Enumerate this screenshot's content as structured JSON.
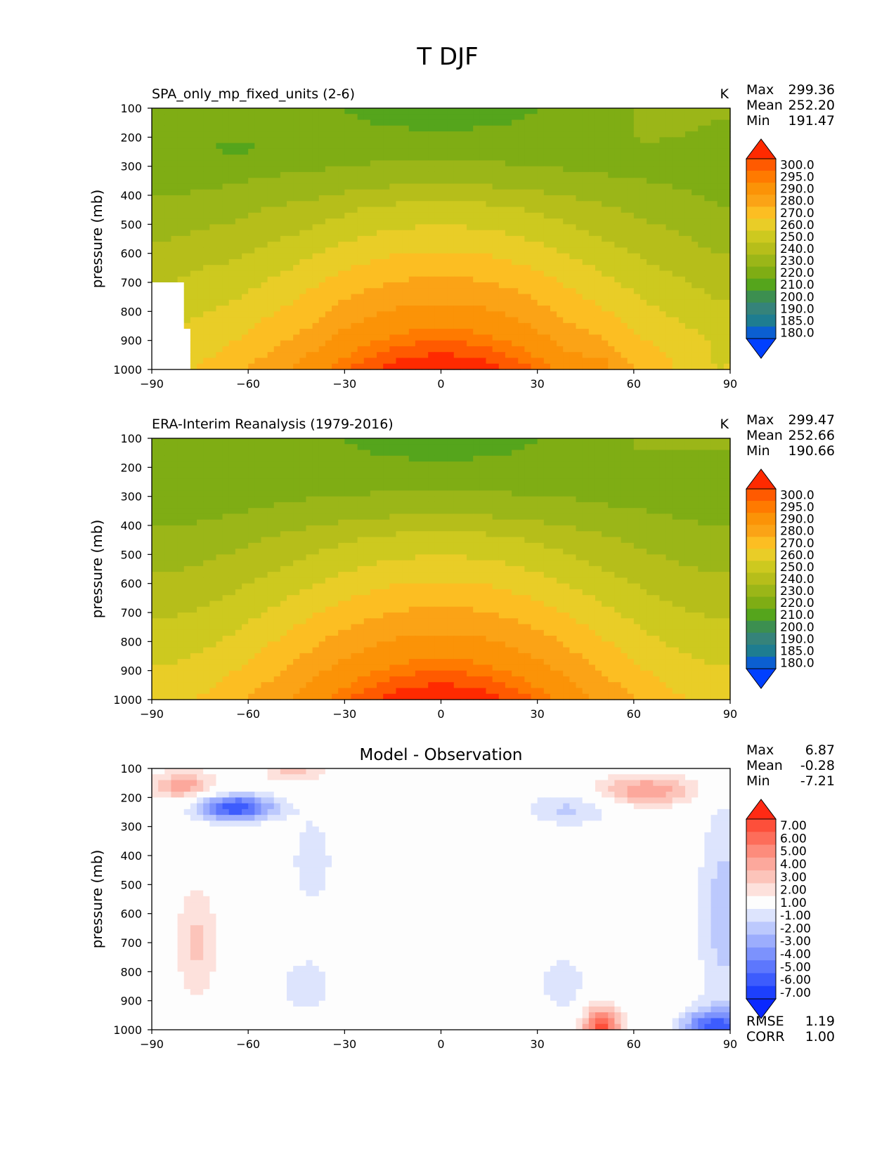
{
  "figure": {
    "title": "T DJF"
  },
  "chart_data": [
    {
      "type": "contour",
      "panel": "model",
      "title_left": "SPA_only_mp_fixed_units (2-6)",
      "units": "K",
      "ylabel": "pressure (mb)",
      "xlabel": "",
      "xlim": [
        -90,
        90
      ],
      "ylim": [
        1000,
        100
      ],
      "xticks": [
        "−90",
        "−60",
        "−30",
        "0",
        "30",
        "60",
        "90"
      ],
      "yticks": [
        "100",
        "200",
        "300",
        "400",
        "500",
        "600",
        "700",
        "800",
        "900",
        "1000"
      ],
      "stats": [
        {
          "label": "Max",
          "value": "299.36"
        },
        {
          "label": "Mean",
          "value": "252.20"
        },
        {
          "label": "Min",
          "value": "191.47"
        }
      ],
      "levels": [
        "300.0",
        "295.0",
        "290.0",
        "280.0",
        "270.0",
        "260.0",
        "250.0",
        "240.0",
        "230.0",
        "220.0",
        "210.0",
        "200.0",
        "190.0",
        "185.0",
        "180.0"
      ],
      "colors": [
        "#ff2a00",
        "#ff5a00",
        "#ff7a00",
        "#fb9307",
        "#fba316",
        "#fcbe22",
        "#e9cd27",
        "#cdc91f",
        "#b6be1a",
        "#9bb618",
        "#7fad14",
        "#55a51c",
        "#3c8f50",
        "#35837a",
        "#1e7d90",
        "#0b5fd1",
        "#0040ff"
      ],
      "max_level": 300,
      "min_level": 180,
      "land_mask": true
    },
    {
      "type": "contour",
      "panel": "obs",
      "title_left": "ERA-Interim Reanalysis (1979-2016)",
      "units": "K",
      "ylabel": "pressure (mb)",
      "xlabel": "",
      "xlim": [
        -90,
        90
      ],
      "ylim": [
        1000,
        100
      ],
      "xticks": [
        "−90",
        "−60",
        "−30",
        "0",
        "30",
        "60",
        "90"
      ],
      "yticks": [
        "100",
        "200",
        "300",
        "400",
        "500",
        "600",
        "700",
        "800",
        "900",
        "1000"
      ],
      "stats": [
        {
          "label": "Max",
          "value": "299.47"
        },
        {
          "label": "Mean",
          "value": "252.66"
        },
        {
          "label": "Min",
          "value": "190.66"
        }
      ],
      "levels": [
        "300.0",
        "295.0",
        "290.0",
        "280.0",
        "270.0",
        "260.0",
        "250.0",
        "240.0",
        "230.0",
        "220.0",
        "210.0",
        "200.0",
        "190.0",
        "185.0",
        "180.0"
      ],
      "colors": [
        "#ff2a00",
        "#ff5a00",
        "#ff7a00",
        "#fb9307",
        "#fba316",
        "#fcbe22",
        "#e9cd27",
        "#cdc91f",
        "#b6be1a",
        "#9bb618",
        "#7fad14",
        "#55a51c",
        "#3c8f50",
        "#35837a",
        "#1e7d90",
        "#0b5fd1",
        "#0040ff"
      ],
      "max_level": 300,
      "min_level": 180,
      "land_mask": false
    },
    {
      "type": "contour",
      "panel": "diff",
      "title_center": "Model - Observation",
      "units": "",
      "ylabel": "pressure (mb)",
      "xlabel": "",
      "xlim": [
        -90,
        90
      ],
      "ylim": [
        1000,
        100
      ],
      "xticks": [
        "−90",
        "−60",
        "−30",
        "0",
        "30",
        "60",
        "90"
      ],
      "yticks": [
        "100",
        "200",
        "300",
        "400",
        "500",
        "600",
        "700",
        "800",
        "900",
        "1000"
      ],
      "stats": [
        {
          "label": "Max",
          "value": "6.87"
        },
        {
          "label": "Mean",
          "value": "-0.28"
        },
        {
          "label": "Min",
          "value": "-7.21"
        }
      ],
      "extra_stats": [
        {
          "label": "RMSE",
          "value": "1.19"
        },
        {
          "label": "CORR",
          "value": "1.00"
        }
      ],
      "levels": [
        "7.00",
        "6.00",
        "5.00",
        "4.00",
        "3.00",
        "2.00",
        "1.00",
        "-1.00",
        "-2.00",
        "-3.00",
        "-4.00",
        "-5.00",
        "-6.00",
        "-7.00"
      ],
      "colors": [
        "#ff2a14",
        "#fd4f3a",
        "#fd6d5a",
        "#fd8c7c",
        "#fca89c",
        "#fcc4ba",
        "#fde1dc",
        "#fdfdfd",
        "#dde4fd",
        "#bcc9fd",
        "#9cadfd",
        "#7c92fd",
        "#5d77fd",
        "#3d5cfd",
        "#1d40fd",
        "#0a28ff"
      ],
      "max_level": 7,
      "min_level": -7
    }
  ]
}
